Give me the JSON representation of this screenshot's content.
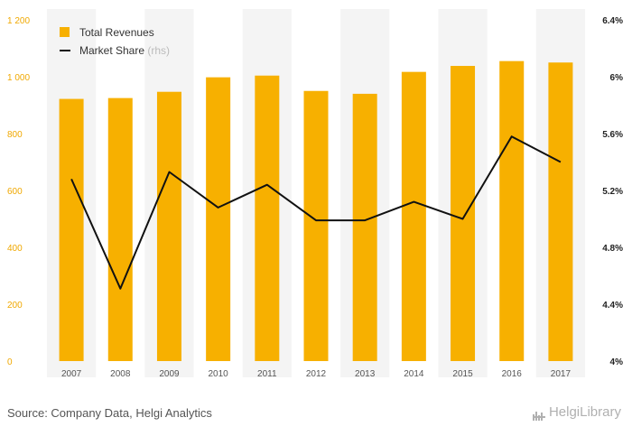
{
  "chart_data": {
    "type": "bar+line",
    "categories": [
      "2007",
      "2008",
      "2009",
      "2010",
      "2011",
      "2012",
      "2013",
      "2014",
      "2015",
      "2016",
      "2017"
    ],
    "series": [
      {
        "name": "Total Revenues",
        "type": "bar",
        "axis": "left",
        "values": [
          922,
          925,
          947,
          998,
          1004,
          950,
          940,
          1017,
          1038,
          1055,
          1050
        ]
      },
      {
        "name": "Market Share",
        "name_suffix": "(rhs)",
        "type": "line",
        "axis": "right",
        "values": [
          5.28,
          4.51,
          5.33,
          5.08,
          5.24,
          4.99,
          4.99,
          5.12,
          5.0,
          5.58,
          5.4
        ]
      }
    ],
    "y_left": {
      "lim": [
        0,
        1200
      ],
      "ticks": [
        0,
        200,
        400,
        600,
        800,
        1000,
        1200
      ],
      "tick_labels": [
        "0",
        "200",
        "400",
        "600",
        "800",
        "1 000",
        "1 200"
      ]
    },
    "y_right": {
      "lim": [
        4.0,
        6.4
      ],
      "ticks": [
        4.0,
        4.4,
        4.8,
        5.2,
        5.6,
        6.0,
        6.4
      ],
      "tick_labels": [
        "4%",
        "4.4%",
        "4.8%",
        "5.2%",
        "5.6%",
        "6%",
        "6.4%"
      ]
    },
    "grid": "vertical-bands",
    "legend": "top-left",
    "colors": {
      "bar": "#f7b000",
      "line": "#111111",
      "left_ticks": "#f0a800",
      "band": "#f4f4f4"
    }
  },
  "footer": {
    "source": "Source: Company Data, Helgi Analytics",
    "brand": "HelgiLibrary"
  }
}
